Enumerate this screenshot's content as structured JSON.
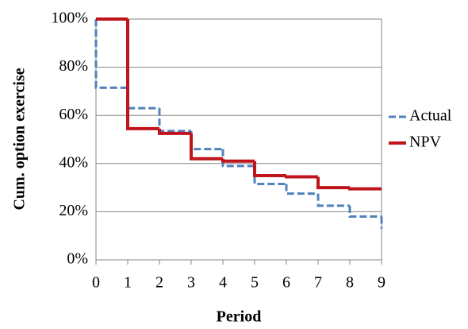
{
  "chart_data": {
    "type": "step",
    "x_label": "Period",
    "y_label": "Cum. option exercise",
    "xlim": [
      0,
      9
    ],
    "xticks": [
      0,
      1,
      2,
      3,
      4,
      5,
      6,
      7,
      8,
      9
    ],
    "ylim": [
      0,
      100
    ],
    "yticks": [
      {
        "value": 0,
        "label": "0%"
      },
      {
        "value": 20,
        "label": "20%"
      },
      {
        "value": 40,
        "label": "40%"
      },
      {
        "value": 60,
        "label": "60%"
      },
      {
        "value": 80,
        "label": "80%"
      },
      {
        "value": 100,
        "label": "100%"
      }
    ],
    "grid": true,
    "legend": "right",
    "series": [
      {
        "name": "Actual",
        "color": "#4f81bd",
        "dash": true,
        "x": [
          0,
          0,
          1,
          2,
          3,
          4,
          5,
          6,
          7,
          8,
          9,
          9
        ],
        "values": [
          100,
          71.5,
          63,
          53.5,
          46,
          39,
          31.5,
          27.5,
          22.5,
          18,
          18,
          13
        ]
      },
      {
        "name": "NPV",
        "color": "#c0141c",
        "dash": false,
        "x": [
          0,
          1,
          2,
          3,
          4,
          5,
          6,
          7,
          8,
          9
        ],
        "values": [
          100,
          54.5,
          52.5,
          42,
          41,
          35,
          34.5,
          30,
          29.5,
          29.5
        ]
      }
    ]
  }
}
